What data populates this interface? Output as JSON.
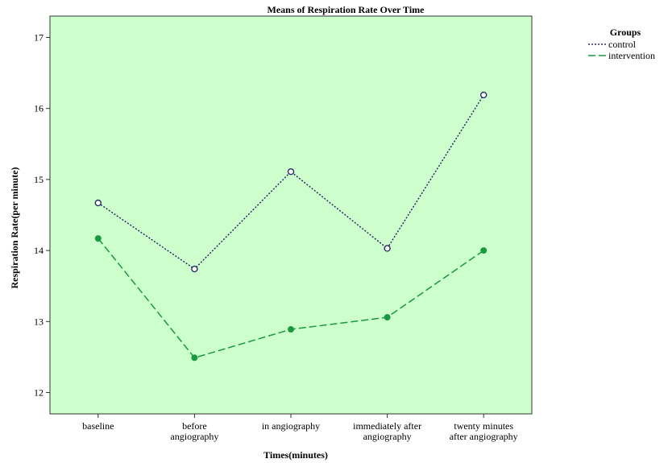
{
  "chart_data": {
    "type": "line",
    "title": "Means of Respiration Rate Over Time",
    "xlabel": "Times(minutes)",
    "ylabel": "Respiration Rate(per minute)",
    "categories": [
      [
        "baseline"
      ],
      [
        "before",
        "angiography"
      ],
      [
        "in angiography"
      ],
      [
        "immediately after",
        "angiography"
      ],
      [
        "twenty minutes",
        "after  angiography"
      ]
    ],
    "ylim": [
      11.7,
      17.3
    ],
    "yticks": [
      12,
      13,
      14,
      15,
      16,
      17
    ],
    "grid": false,
    "legend_title": "Groups",
    "legend_position": "top-right",
    "plot_background": "#ccffcc",
    "series": [
      {
        "name": "control",
        "values": [
          14.67,
          13.74,
          15.11,
          14.03,
          16.19
        ],
        "color": "#2a2a6e",
        "dash": "2,2",
        "marker": "open-circle"
      },
      {
        "name": "intervention",
        "values": [
          14.17,
          12.49,
          12.89,
          13.06,
          14.0
        ],
        "color": "#1a9a3f",
        "dash": "9,4",
        "marker": "filled-circle"
      }
    ]
  }
}
